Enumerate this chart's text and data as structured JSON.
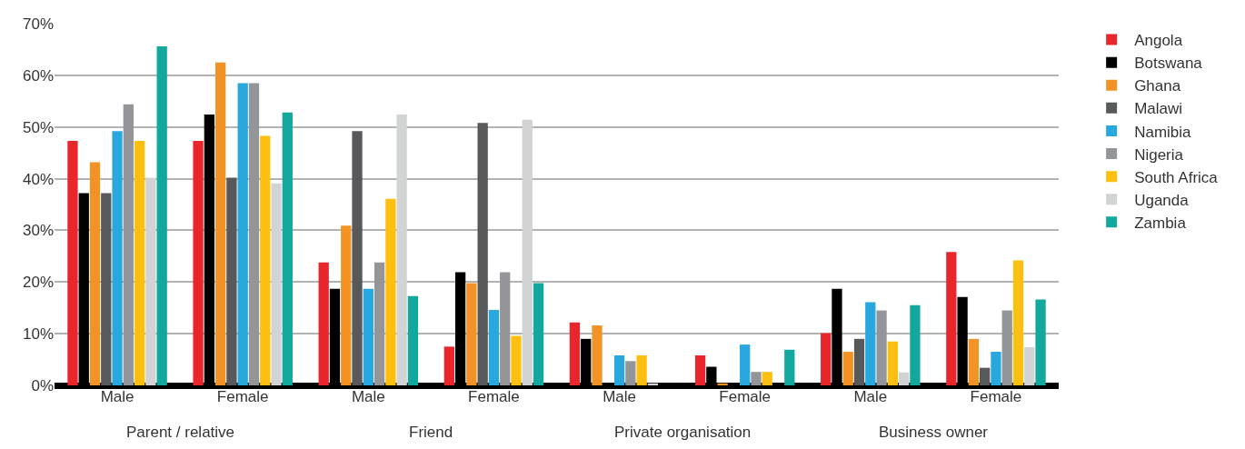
{
  "chart_data": {
    "type": "bar",
    "categories": [
      "Male",
      "Female",
      "Male",
      "Female",
      "Male",
      "Female",
      "Male",
      "Female"
    ],
    "annotations": [
      "Parent / relative",
      "Friend",
      "Private organisation",
      "Business owner"
    ],
    "series": [
      {
        "name": "Angola",
        "color": "#e8262b",
        "values": [
          47.3,
          47.3,
          23.8,
          7.5,
          12.2,
          5.8,
          10.1,
          25.8
        ]
      },
      {
        "name": "Botswana",
        "color": "#000000",
        "values": [
          37.2,
          52.4,
          18.7,
          21.9,
          9.0,
          3.6,
          18.7,
          17.1
        ]
      },
      {
        "name": "Ghana",
        "color": "#f39325",
        "values": [
          43.2,
          62.5,
          30.9,
          19.8,
          11.6,
          0.4,
          6.5,
          9.0
        ]
      },
      {
        "name": "Malawi",
        "color": "#58595b",
        "values": [
          37.2,
          40.2,
          49.2,
          50.8,
          0,
          0,
          9.0,
          3.4
        ]
      },
      {
        "name": "Namibia",
        "color": "#29a8e0",
        "values": [
          49.2,
          58.5,
          18.7,
          14.6,
          5.8,
          7.9,
          16.1,
          6.5
        ]
      },
      {
        "name": "Nigeria",
        "color": "#939598",
        "values": [
          54.4,
          58.5,
          23.8,
          21.9,
          4.7,
          2.6,
          14.5,
          14.5
        ]
      },
      {
        "name": "South Africa",
        "color": "#fdc010",
        "values": [
          47.3,
          48.3,
          36.1,
          9.6,
          5.8,
          2.6,
          8.5,
          24.2
        ]
      },
      {
        "name": "Uganda",
        "color": "#d1d3d4",
        "values": [
          40.2,
          39.1,
          52.4,
          51.4,
          0.4,
          0,
          2.5,
          7.4
        ]
      },
      {
        "name": "Zambia",
        "color": "#12a89d",
        "values": [
          65.6,
          52.8,
          17.3,
          19.8,
          0,
          6.9,
          15.5,
          16.6
        ]
      }
    ],
    "ylim": [
      0,
      70
    ],
    "yticks": [
      {
        "value": 0,
        "label": "0%"
      },
      {
        "value": 10,
        "label": "10%"
      },
      {
        "value": 20,
        "label": "20%"
      },
      {
        "value": 30,
        "label": "30%"
      },
      {
        "value": 40,
        "label": "40%"
      },
      {
        "value": 50,
        "label": "50%"
      },
      {
        "value": 60,
        "label": "60%"
      },
      {
        "value": 70,
        "label": "70%"
      }
    ],
    "grid": "y",
    "legend": "right"
  }
}
